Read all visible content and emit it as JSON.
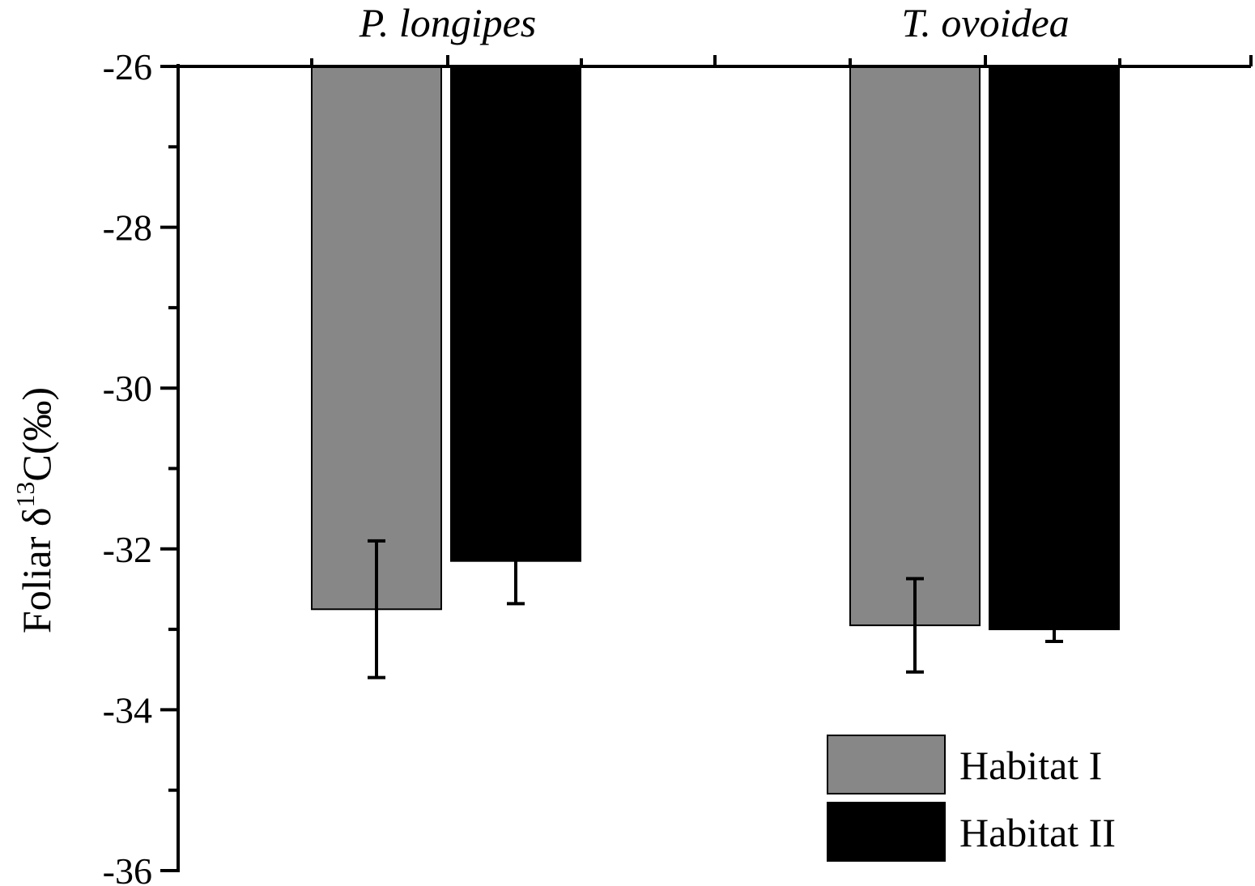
{
  "chart_data": {
    "type": "bar",
    "title": "",
    "xlabel": "",
    "ylabel": {
      "prefix": "Foliar δ",
      "superscript": "13",
      "suffix": "C(‰)"
    },
    "categories": [
      "P. longipes",
      "T. ovoidea"
    ],
    "ylim": [
      -36,
      -26
    ],
    "yticks": [
      -26,
      -28,
      -30,
      -32,
      -34,
      -36
    ],
    "ytick_labels": [
      "-26",
      "-28",
      "-30",
      "-32",
      "-34",
      "-36"
    ],
    "baseline": -26,
    "grid": false,
    "legend_position": "bottom-right",
    "series": [
      {
        "name": "Habitat I",
        "color": "#878787",
        "values": [
          -32.75,
          -32.95
        ],
        "errors": [
          0.85,
          0.58
        ]
      },
      {
        "name": "Habitat II",
        "color": "#000000",
        "values": [
          -32.15,
          -33.0
        ],
        "errors": [
          0.53,
          0.15
        ]
      }
    ]
  }
}
